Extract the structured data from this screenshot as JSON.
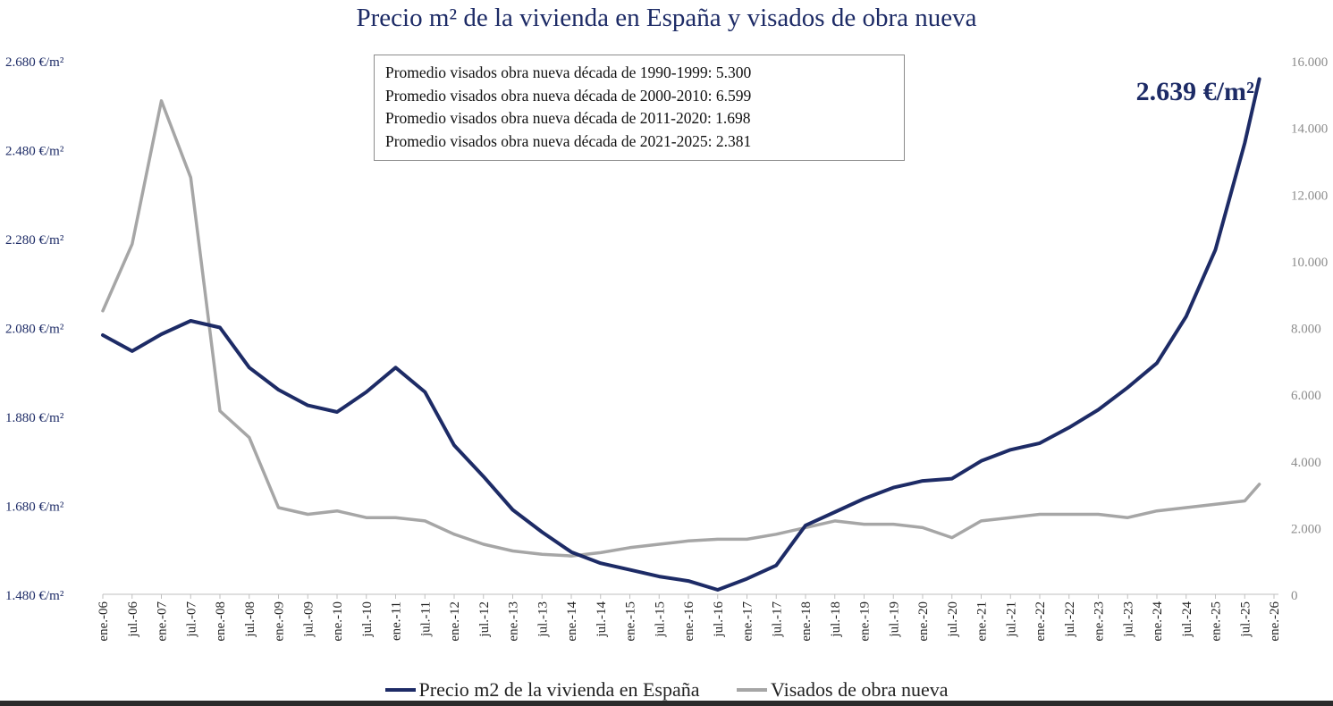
{
  "chart_data": {
    "type": "line",
    "title": "Precio m² de la vivienda en España y visados de obra nueva",
    "annotation": {
      "lines": [
        "Promedio visados obra nueva década de 1990-1999: 5.300",
        "Promedio visados obra nueva década de 2000-2010: 6.599",
        "Promedio visados obra nueva década de 2011-2020: 1.698",
        "Promedio visados obra nueva década de 2021-2025: 2.381"
      ]
    },
    "last_value_label": "2.639 €/m²",
    "x_tick_labels": [
      "ene.-06",
      "jul.-06",
      "ene.-07",
      "jul.-07",
      "ene.-08",
      "jul.-08",
      "ene.-09",
      "jul.-09",
      "ene.-10",
      "jul.-10",
      "ene.-11",
      "jul.-11",
      "ene.-12",
      "jul.-12",
      "ene.-13",
      "jul.-13",
      "ene.-14",
      "jul.-14",
      "ene.-15",
      "jul.-15",
      "ene.-16",
      "jul.-16",
      "ene.-17",
      "jul.-17",
      "ene.-18",
      "jul.-18",
      "ene.-19",
      "jul.-19",
      "ene.-20",
      "jul.-20",
      "ene.-21",
      "jul.-21",
      "ene.-22",
      "jul.-22",
      "ene.-23",
      "jul.-23",
      "ene.-24",
      "jul.-24",
      "ene.-25",
      "jul.-25",
      "ene.-26"
    ],
    "y_left": {
      "ylim": [
        1480,
        2680
      ],
      "tick_labels": [
        "1.480 €/m²",
        "1.680 €/m²",
        "1.880 €/m²",
        "2.080 €/m²",
        "2.280 €/m²",
        "2.480 €/m²",
        "2.680 €/m²"
      ],
      "ticks": [
        1480,
        1680,
        1880,
        2080,
        2280,
        2480,
        2680
      ]
    },
    "y_right": {
      "ylim": [
        0,
        16000
      ],
      "tick_labels": [
        "0",
        "2.000",
        "4.000",
        "6.000",
        "8.000",
        "10.000",
        "12.000",
        "14.000",
        "16.000"
      ],
      "ticks": [
        0,
        2000,
        4000,
        6000,
        8000,
        10000,
        12000,
        14000,
        16000
      ]
    },
    "series": [
      {
        "name": "Precio m2 de la vivienda en España",
        "axis": "left",
        "color": "#1d2b66",
        "x": [
          "2006-01",
          "2006-07",
          "2007-01",
          "2007-07",
          "2008-01",
          "2008-07",
          "2009-01",
          "2009-07",
          "2010-01",
          "2010-07",
          "2011-01",
          "2011-07",
          "2012-01",
          "2012-07",
          "2013-01",
          "2013-07",
          "2014-01",
          "2014-07",
          "2015-01",
          "2015-07",
          "2016-01",
          "2016-07",
          "2017-01",
          "2017-07",
          "2018-01",
          "2018-07",
          "2019-01",
          "2019-07",
          "2020-01",
          "2020-07",
          "2021-01",
          "2021-07",
          "2022-01",
          "2022-07",
          "2023-01",
          "2023-07",
          "2024-01",
          "2024-07",
          "2025-01",
          "2025-07",
          "2025-10"
        ],
        "values": [
          2063,
          2027,
          2065,
          2095,
          2080,
          1990,
          1940,
          1905,
          1890,
          1935,
          1990,
          1935,
          1815,
          1745,
          1670,
          1620,
          1575,
          1550,
          1535,
          1520,
          1510,
          1490,
          1515,
          1545,
          1635,
          1665,
          1695,
          1720,
          1735,
          1740,
          1780,
          1805,
          1820,
          1855,
          1895,
          1945,
          2000,
          2105,
          2255,
          2495,
          2639
        ]
      },
      {
        "name": "Visados de obra nueva",
        "axis": "right",
        "color": "#a6a6a6",
        "x": [
          "2006-01",
          "2006-07",
          "2007-01",
          "2007-07",
          "2008-01",
          "2008-07",
          "2009-01",
          "2009-07",
          "2010-01",
          "2010-07",
          "2011-01",
          "2011-07",
          "2012-01",
          "2012-07",
          "2013-01",
          "2013-07",
          "2014-01",
          "2014-07",
          "2015-01",
          "2015-07",
          "2016-01",
          "2016-07",
          "2017-01",
          "2017-07",
          "2018-01",
          "2018-07",
          "2019-01",
          "2019-07",
          "2020-01",
          "2020-07",
          "2021-01",
          "2021-07",
          "2022-01",
          "2022-07",
          "2023-01",
          "2023-07",
          "2024-01",
          "2024-07",
          "2025-01",
          "2025-07",
          "2025-10"
        ],
        "values": [
          8500,
          10500,
          14800,
          12500,
          5500,
          4700,
          2600,
          2400,
          2500,
          2300,
          2300,
          2200,
          1800,
          1500,
          1300,
          1200,
          1150,
          1250,
          1400,
          1500,
          1600,
          1650,
          1650,
          1800,
          2000,
          2200,
          2100,
          2100,
          2000,
          1700,
          2200,
          2300,
          2400,
          2400,
          2400,
          2300,
          2500,
          2600,
          2700,
          2800,
          3300
        ]
      }
    ],
    "legend": {
      "position": "bottom"
    }
  }
}
